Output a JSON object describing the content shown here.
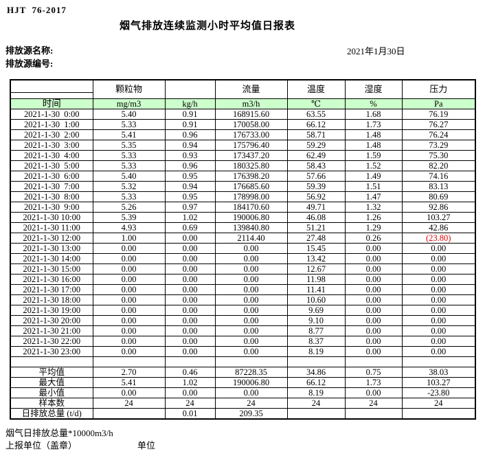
{
  "page": {
    "standard_code": "HJT  76-2017",
    "title": "烟气排放连续监测小时平均值日报表",
    "source_name_label": "排放源名称:",
    "source_code_label": "排放源编号:",
    "date": "2021年1月30日"
  },
  "table": {
    "group_headers": {
      "particulate": "颗粒物",
      "flow": "流量",
      "temperature": "温度",
      "humidity": "湿度",
      "pressure": "压力"
    },
    "unit_row": [
      "时间",
      "mg/m3",
      "kg/h",
      "m3/h",
      "℃",
      "%",
      "Pa"
    ],
    "colors": {
      "unit_row_bg": "#ccffcc",
      "negative_red": "#e00000"
    },
    "rows": [
      {
        "time": "2021-1-30  0:00",
        "values": [
          "5.40",
          "0.91",
          "168915.60",
          "63.55",
          "1.68",
          "76.19"
        ]
      },
      {
        "time": "2021-1-30  1:00",
        "values": [
          "5.33",
          "0.91",
          "170058.00",
          "66.12",
          "1.73",
          "76.27"
        ]
      },
      {
        "time": "2021-1-30  2:00",
        "values": [
          "5.41",
          "0.96",
          "176733.00",
          "58.71",
          "1.48",
          "76.24"
        ]
      },
      {
        "time": "2021-1-30  3:00",
        "values": [
          "5.35",
          "0.94",
          "175796.40",
          "59.29",
          "1.48",
          "73.29"
        ]
      },
      {
        "time": "2021-1-30  4:00",
        "values": [
          "5.33",
          "0.93",
          "173437.20",
          "62.49",
          "1.59",
          "75.30"
        ]
      },
      {
        "time": "2021-1-30  5:00",
        "values": [
          "5.33",
          "0.96",
          "180325.80",
          "58.43",
          "1.52",
          "82.20"
        ]
      },
      {
        "time": "2021-1-30  6:00",
        "values": [
          "5.40",
          "0.95",
          "176398.20",
          "57.66",
          "1.49",
          "74.16"
        ]
      },
      {
        "time": "2021-1-30  7:00",
        "values": [
          "5.32",
          "0.94",
          "176685.60",
          "59.39",
          "1.51",
          "83.13"
        ]
      },
      {
        "time": "2021-1-30  8:00",
        "values": [
          "5.33",
          "0.95",
          "178998.00",
          "56.92",
          "1.47",
          "80.69"
        ]
      },
      {
        "time": "2021-1-30  9:00",
        "values": [
          "5.26",
          "0.97",
          "184170.60",
          "49.71",
          "1.32",
          "92.86"
        ]
      },
      {
        "time": "2021-1-30 10:00",
        "values": [
          "5.39",
          "1.02",
          "190006.80",
          "46.08",
          "1.26",
          "103.27"
        ]
      },
      {
        "time": "2021-1-30 11:00",
        "values": [
          "4.93",
          "0.69",
          "139840.80",
          "51.21",
          "1.29",
          "42.86"
        ]
      },
      {
        "time": "2021-1-30 12:00",
        "values": [
          "1.00",
          "0.00",
          "2114.40",
          "27.48",
          "0.26",
          "(23.80)"
        ],
        "red_col": 5
      },
      {
        "time": "2021-1-30 13:00",
        "values": [
          "0.00",
          "0.00",
          "0.00",
          "15.45",
          "0.00",
          "0.00"
        ]
      },
      {
        "time": "2021-1-30 14:00",
        "values": [
          "0.00",
          "0.00",
          "0.00",
          "13.42",
          "0.00",
          "0.00"
        ]
      },
      {
        "time": "2021-1-30 15:00",
        "values": [
          "0.00",
          "0.00",
          "0.00",
          "12.67",
          "0.00",
          "0.00"
        ]
      },
      {
        "time": "2021-1-30 16:00",
        "values": [
          "0.00",
          "0.00",
          "0.00",
          "11.98",
          "0.00",
          "0.00"
        ]
      },
      {
        "time": "2021-1-30 17:00",
        "values": [
          "0.00",
          "0.00",
          "0.00",
          "11.41",
          "0.00",
          "0.00"
        ]
      },
      {
        "time": "2021-1-30 18:00",
        "values": [
          "0.00",
          "0.00",
          "0.00",
          "10.60",
          "0.00",
          "0.00"
        ]
      },
      {
        "time": "2021-1-30 19:00",
        "values": [
          "0.00",
          "0.00",
          "0.00",
          "9.69",
          "0.00",
          "0.00"
        ]
      },
      {
        "time": "2021-1-30 20:00",
        "values": [
          "0.00",
          "0.00",
          "0.00",
          "9.10",
          "0.00",
          "0.00"
        ]
      },
      {
        "time": "2021-1-30 21:00",
        "values": [
          "0.00",
          "0.00",
          "0.00",
          "8.77",
          "0.00",
          "0.00"
        ]
      },
      {
        "time": "2021-1-30 22:00",
        "values": [
          "0.00",
          "0.00",
          "0.00",
          "8.37",
          "0.00",
          "0.00"
        ]
      },
      {
        "time": "2021-1-30 23:00",
        "values": [
          "0.00",
          "0.00",
          "0.00",
          "8.19",
          "0.00",
          "0.00"
        ]
      }
    ],
    "summary": [
      {
        "label": "平均值",
        "values": [
          "2.70",
          "0.46",
          "87228.35",
          "34.86",
          "0.75",
          "38.03"
        ]
      },
      {
        "label": "最大值",
        "values": [
          "5.41",
          "1.02",
          "190006.80",
          "66.12",
          "1.73",
          "103.27"
        ]
      },
      {
        "label": "最小值",
        "values": [
          "0.00",
          "0.00",
          "0.00",
          "8.19",
          "0.00",
          "-23.80"
        ]
      },
      {
        "label": "样本数",
        "values": [
          "24",
          "24",
          "24",
          "24",
          "24",
          "24"
        ]
      },
      {
        "label": "日排放总量 (t/d)",
        "values": [
          "",
          "0.01",
          "209.35",
          "",
          "",
          ""
        ],
        "align": "left"
      }
    ]
  },
  "footer": {
    "note": "烟气日排放总量*10000m3/h",
    "stamp_label": "上报单位（盖章）",
    "unit_label": "单位"
  }
}
